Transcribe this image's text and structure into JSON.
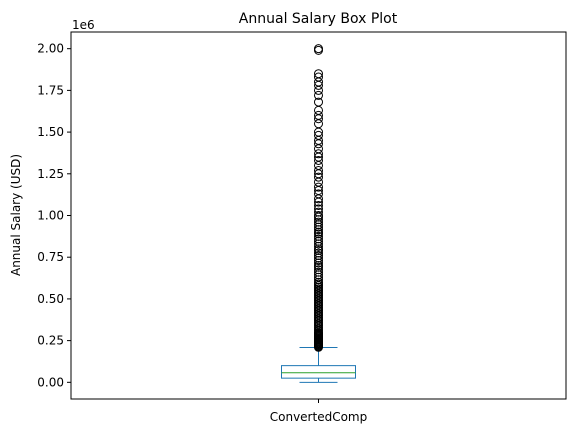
{
  "chart_data": {
    "type": "box",
    "title": "Annual Salary Box Plot",
    "xlabel": "",
    "ylabel": "Annual Salary (USD)",
    "y_offset_label": "1e6",
    "categories": [
      "ConvertedComp"
    ],
    "ylim": [
      -100000,
      2100000
    ],
    "yticks": [
      0,
      250000,
      500000,
      750000,
      1000000,
      1250000,
      1500000,
      1750000,
      2000000
    ],
    "ytick_labels": [
      "0.00",
      "0.25",
      "0.50",
      "0.75",
      "1.00",
      "1.25",
      "1.50",
      "1.75",
      "2.00"
    ],
    "grid": false,
    "box": {
      "whisker_low": 0,
      "q1": 25000,
      "median": 57000,
      "q3": 100000,
      "whisker_high": 209000
    },
    "fliers": [
      210000,
      215000,
      220000,
      225000,
      230000,
      235000,
      240000,
      245000,
      250000,
      255000,
      260000,
      265000,
      270000,
      275000,
      280000,
      285000,
      290000,
      295000,
      300000,
      310000,
      320000,
      330000,
      340000,
      350000,
      360000,
      370000,
      380000,
      390000,
      400000,
      410000,
      420000,
      430000,
      440000,
      450000,
      460000,
      470000,
      480000,
      490000,
      500000,
      510000,
      520000,
      530000,
      540000,
      550000,
      560000,
      570000,
      580000,
      590000,
      600000,
      615000,
      630000,
      645000,
      660000,
      675000,
      690000,
      700000,
      715000,
      730000,
      745000,
      760000,
      775000,
      790000,
      800000,
      815000,
      830000,
      845000,
      860000,
      875000,
      890000,
      900000,
      915000,
      930000,
      945000,
      960000,
      975000,
      990000,
      1000000,
      1020000,
      1040000,
      1060000,
      1080000,
      1100000,
      1130000,
      1150000,
      1170000,
      1200000,
      1230000,
      1250000,
      1270000,
      1300000,
      1330000,
      1350000,
      1370000,
      1400000,
      1430000,
      1450000,
      1480000,
      1500000,
      1550000,
      1580000,
      1600000,
      1630000,
      1680000,
      1720000,
      1750000,
      1780000,
      1800000,
      1830000,
      1850000,
      1990000,
      2000000
    ],
    "colors": {
      "box": "#1f77b4",
      "median": "#2ca02c",
      "flier": "#000000"
    }
  }
}
